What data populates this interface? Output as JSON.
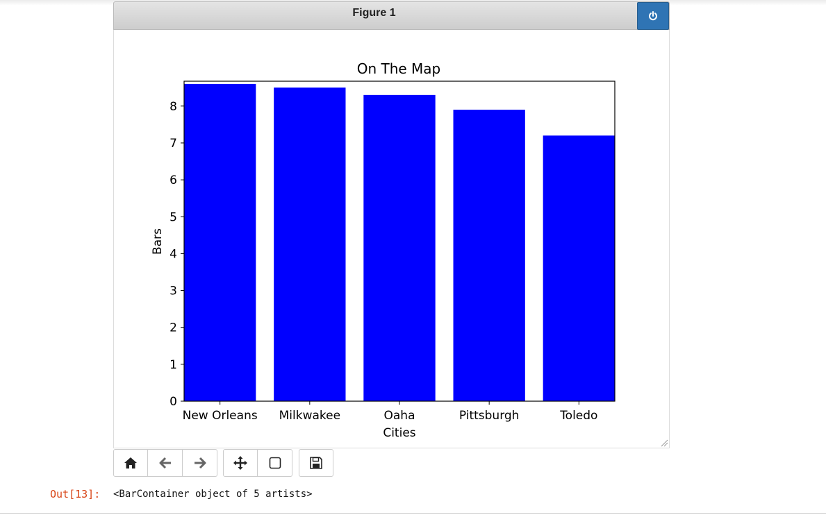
{
  "figure": {
    "title": "Figure 1"
  },
  "toolbar": {
    "buttons": [
      {
        "icon": "home-icon"
      },
      {
        "icon": "arrow-left-icon"
      },
      {
        "icon": "arrow-right-icon"
      },
      {
        "icon": "move-icon"
      },
      {
        "icon": "zoom-rect-icon"
      },
      {
        "icon": "save-icon"
      }
    ]
  },
  "output": {
    "prompt": "Out[13]:",
    "text": "<BarContainer object of 5 artists>"
  },
  "colors": {
    "bar": "#0000ff",
    "power_button": "#2f74b4",
    "prompt": "#d84315"
  },
  "chart_data": {
    "type": "bar",
    "title": "On The Map",
    "xlabel": "Cities",
    "ylabel": "Bars",
    "categories": [
      "New Orleans",
      "Milkwakee",
      "Oaha",
      "Pittsburgh",
      "Toledo"
    ],
    "values": [
      8.6,
      8.5,
      8.3,
      7.9,
      7.2
    ],
    "ylim": [
      0,
      8.7
    ],
    "yticks": [
      "0",
      "1",
      "2",
      "3",
      "4",
      "5",
      "6",
      "7",
      "8"
    ],
    "grid": false,
    "bar_color": "#0000ff"
  }
}
